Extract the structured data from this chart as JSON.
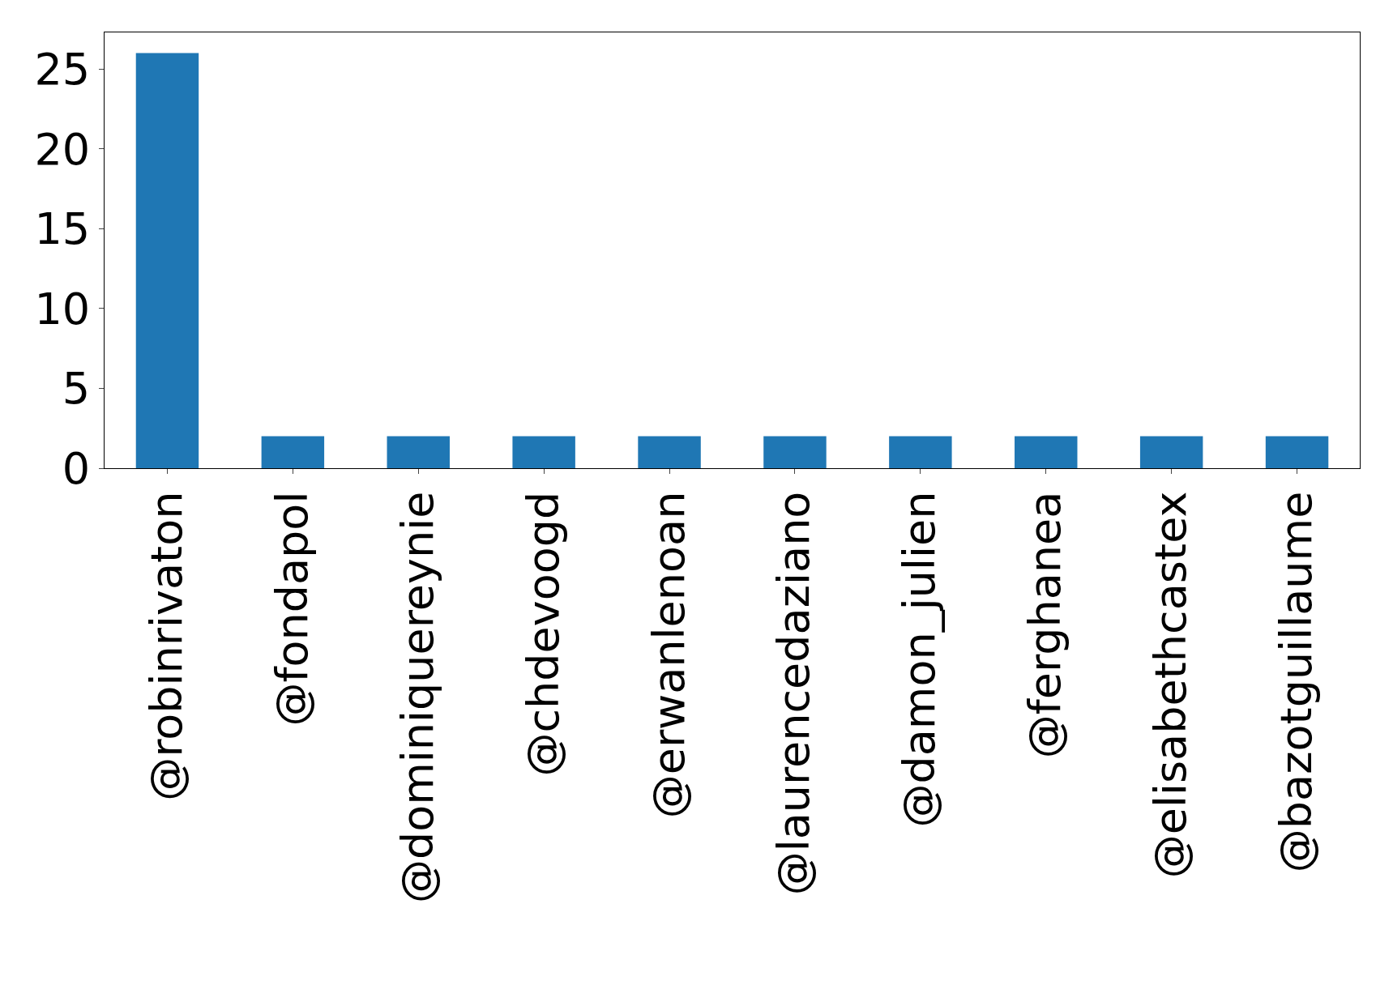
{
  "chart_data": {
    "type": "bar",
    "categories": [
      "@robinrivaton",
      "@fondapol",
      "@dominiquereynie",
      "@chdevoogd",
      "@erwanlenoan",
      "@laurencedaziano",
      "@damon_julien",
      "@ferghanea",
      "@elisabethcastex",
      "@bazotguillaume"
    ],
    "values": [
      26,
      2,
      2,
      2,
      2,
      2,
      2,
      2,
      2,
      2
    ],
    "color": "#1f77b4",
    "ylim": [
      0,
      27.3
    ],
    "yticks": [
      0,
      5,
      10,
      15,
      20,
      25
    ]
  }
}
